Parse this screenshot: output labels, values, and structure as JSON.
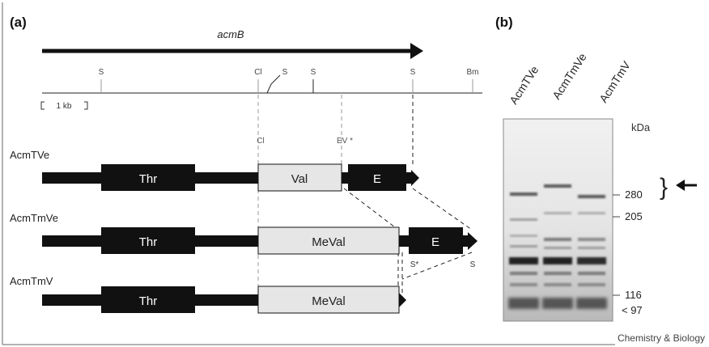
{
  "panel_a": {
    "label": "(a)",
    "gene": "acmB",
    "scale": "1 kb",
    "restriction_sites": [
      "S",
      "Cl",
      "S",
      "S",
      "S",
      "Bm"
    ],
    "construct_sites": [
      "Cl",
      "EV *",
      "S*",
      "S"
    ],
    "constructs": [
      {
        "name": "AcmTVe",
        "domains": [
          "Thr",
          "Val",
          "E"
        ]
      },
      {
        "name": "AcmTmVe",
        "domains": [
          "Thr",
          "MeVal",
          "E"
        ]
      },
      {
        "name": "AcmTmV",
        "domains": [
          "Thr",
          "MeVal"
        ]
      }
    ]
  },
  "panel_b": {
    "label": "(b)",
    "lanes": [
      "AcmTVe",
      "AcmTmVe",
      "AcmTmV"
    ],
    "unit": "kDa",
    "markers": [
      "280",
      "205",
      "116",
      "< 97"
    ],
    "bracket": "}"
  },
  "credit": "Chemistry & Biology",
  "colors": {
    "ink": "#111111",
    "domain_light": "#e6e6e6",
    "site": "#8a8a8a"
  }
}
